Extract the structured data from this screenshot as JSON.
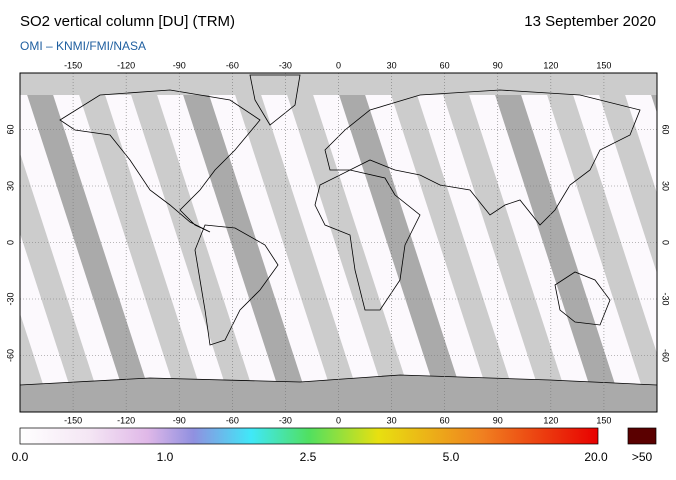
{
  "header": {
    "title": "SO2 vertical column [DU] (TRM)",
    "date": "13 September 2020",
    "credit": "OMI  –  KNMI/FMI/NASA"
  },
  "map": {
    "lon_ticks": [
      -150,
      -120,
      -90,
      -60,
      -30,
      0,
      30,
      60,
      90,
      120,
      150
    ],
    "lat_ticks": [
      -60,
      -30,
      0,
      30,
      60
    ]
  },
  "colorbar": {
    "labels": [
      "0.0",
      "1.0",
      "2.5",
      "5.0",
      "20.0"
    ],
    "overflow_label": ">50"
  }
}
